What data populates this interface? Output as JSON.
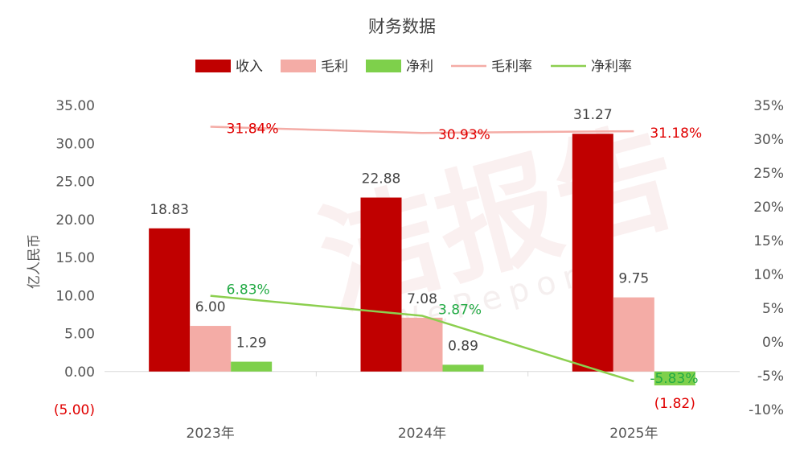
{
  "chart_data": {
    "type": "bar",
    "title": "财务数据",
    "ylabel": "亿人民币",
    "categories": [
      "2023年",
      "2024年",
      "2025年"
    ],
    "ylim": [
      -5,
      35
    ],
    "y_ticks": [
      "(5.00)",
      "0.00",
      "5.00",
      "10.00",
      "15.00",
      "20.00",
      "25.00",
      "30.00",
      "35.00"
    ],
    "y2lim": [
      -10,
      35
    ],
    "y2_ticks": [
      "-10%",
      "-5%",
      "0%",
      "5%",
      "10%",
      "15%",
      "20%",
      "25%",
      "30%",
      "35%"
    ],
    "series": [
      {
        "name": "收入",
        "kind": "bar",
        "color": "#c00000",
        "values": [
          18.83,
          22.88,
          31.27
        ],
        "labels": [
          "18.83",
          "22.88",
          "31.27"
        ]
      },
      {
        "name": "毛利",
        "kind": "bar",
        "color": "#f4aca6",
        "values": [
          6.0,
          7.08,
          9.75
        ],
        "labels": [
          "6.00",
          "7.08",
          "9.75"
        ]
      },
      {
        "name": "净利",
        "kind": "bar",
        "color": "#7ed04b",
        "values": [
          1.29,
          0.89,
          -1.82
        ],
        "labels": [
          "1.29",
          "0.89",
          "(1.82)"
        ]
      },
      {
        "name": "毛利率",
        "kind": "line",
        "axis": "right",
        "color": "#f4aca6",
        "values": [
          31.84,
          30.93,
          31.18
        ],
        "labels": [
          "31.84%",
          "30.93%",
          "31.18%"
        ]
      },
      {
        "name": "净利率",
        "kind": "line",
        "axis": "right",
        "color": "#8ccf4f",
        "values": [
          6.83,
          3.87,
          -5.83
        ],
        "labels": [
          "6.83%",
          "3.87%",
          "-5.83%"
        ]
      }
    ],
    "legend_position": "top",
    "grid": false
  },
  "watermark": {
    "main": "洁报告",
    "sub": "iWeReport"
  }
}
